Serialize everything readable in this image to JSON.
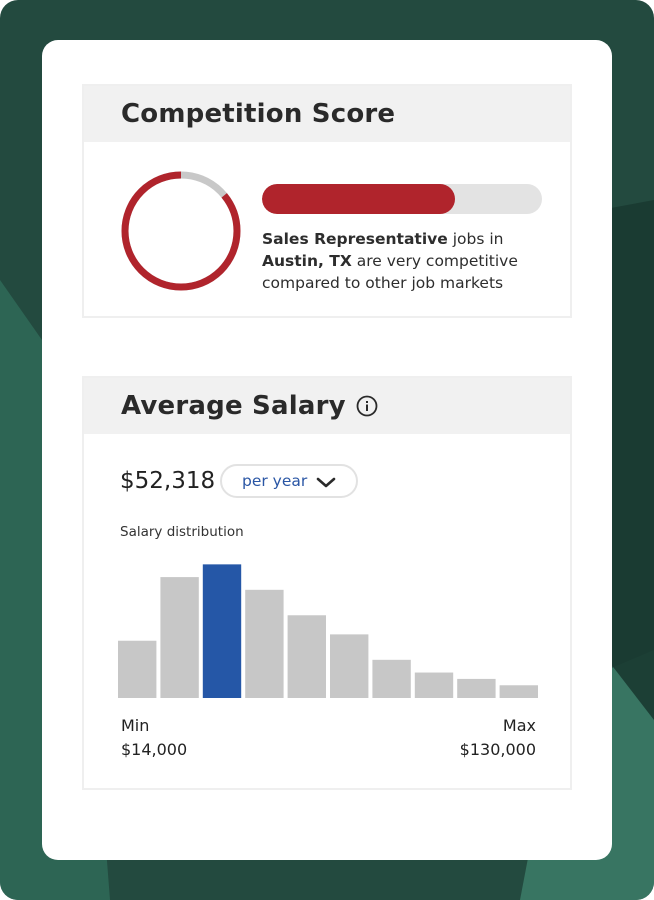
{
  "colors": {
    "background": "#234a3f",
    "accent_red": "#b0242c",
    "accent_blue": "#2557a7",
    "bar_gray": "#c7c7c7",
    "track_gray": "#e3e3e3"
  },
  "competition": {
    "title": "Competition Score",
    "score_fraction": 0.69,
    "ring_fraction": 0.86,
    "job_title": "Sales Representative",
    "text_after_job": " jobs in",
    "location": "Austin, TX",
    "text_after_location": " are very competitive compared to other job markets"
  },
  "salary": {
    "title": "Average Salary",
    "info_icon": "info-circle-icon",
    "amount": "$52,318",
    "period": {
      "selected": "per year",
      "icon": "chevron-down-icon"
    },
    "distribution_label": "Salary distribution",
    "min_label": "Min",
    "min_value": "$14,000",
    "max_label": "Max",
    "max_value": "$130,000"
  },
  "chart_data": {
    "type": "bar",
    "title": "Salary distribution",
    "values": [
      45,
      95,
      105,
      85,
      65,
      50,
      30,
      20,
      15,
      10
    ],
    "highlight_index": 2,
    "ylim": [
      0,
      110
    ],
    "xlabel": "",
    "ylabel": "",
    "grid": false
  }
}
